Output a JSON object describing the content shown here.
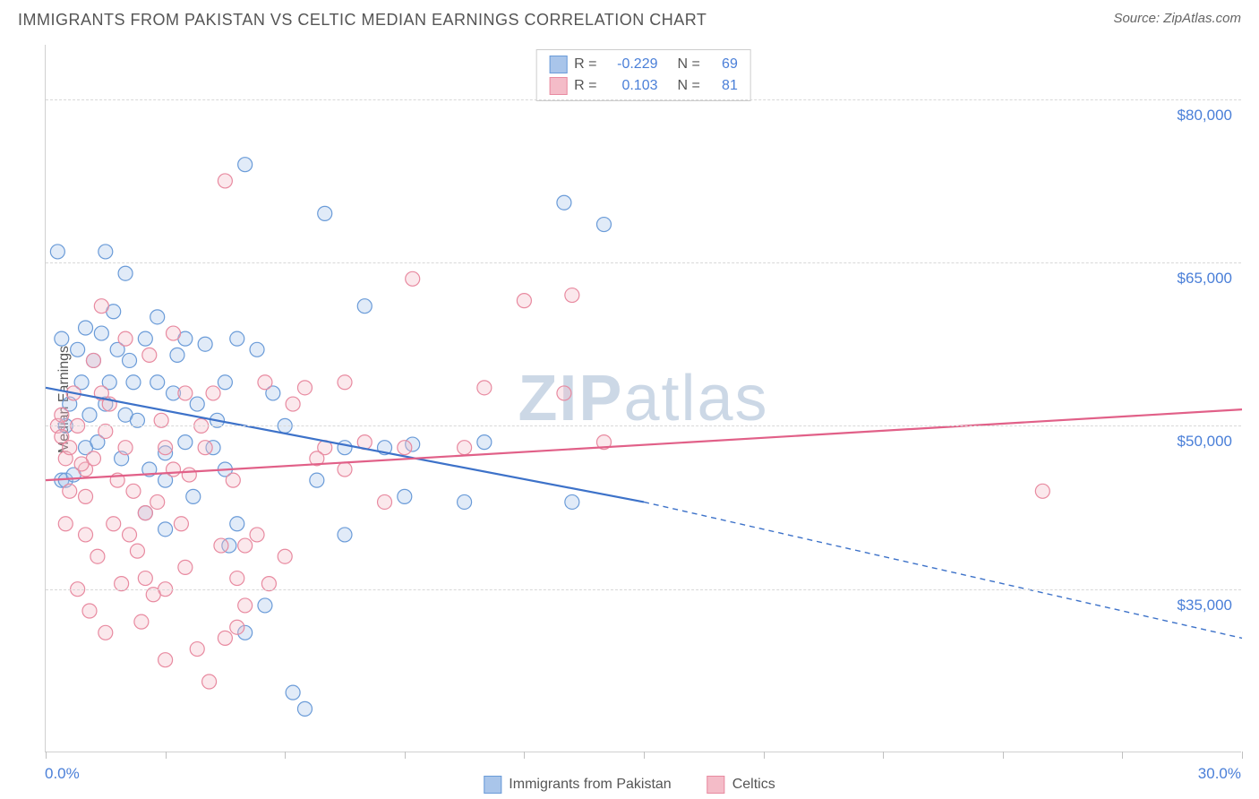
{
  "header": {
    "title": "IMMIGRANTS FROM PAKISTAN VS CELTIC MEDIAN EARNINGS CORRELATION CHART",
    "source": "Source: ZipAtlas.com"
  },
  "watermark": {
    "bold": "ZIP",
    "light": "atlas"
  },
  "chart": {
    "type": "scatter",
    "y_axis_title": "Median Earnings",
    "xlim": [
      0,
      30
    ],
    "ylim": [
      20000,
      85000
    ],
    "x_tick_positions": [
      0,
      3,
      6,
      9,
      12,
      15,
      18,
      21,
      24,
      27,
      30
    ],
    "x_start_label": "0.0%",
    "x_end_label": "30.0%",
    "y_gridlines": [
      35000,
      50000,
      65000,
      80000
    ],
    "y_tick_labels": [
      "$35,000",
      "$50,000",
      "$65,000",
      "$80,000"
    ],
    "grid_color": "#d8d8d8",
    "background_color": "#ffffff",
    "axis_label_color": "#4a7fd8",
    "marker_radius": 8,
    "series": [
      {
        "name": "Immigrants from Pakistan",
        "color_fill": "#a9c5ea",
        "color_stroke": "#6a9bd8",
        "R": "-0.229",
        "N": "69",
        "trend": {
          "solid": {
            "x1": 0,
            "y1": 53500,
            "x2": 15,
            "y2": 43000
          },
          "dashed": {
            "x1": 15,
            "y1": 43000,
            "x2": 30,
            "y2": 30500
          },
          "color": "#3d72c9",
          "width": 2.2
        },
        "points": [
          [
            0.3,
            66000
          ],
          [
            0.5,
            50000
          ],
          [
            0.4,
            45000
          ],
          [
            0.6,
            52000
          ],
          [
            0.8,
            57000
          ],
          [
            1.0,
            59000
          ],
          [
            1.2,
            56000
          ],
          [
            1.5,
            66000
          ],
          [
            1.4,
            58500
          ],
          [
            1.6,
            54000
          ],
          [
            1.8,
            57000
          ],
          [
            1.0,
            48000
          ],
          [
            0.5,
            45000
          ],
          [
            2.0,
            51000
          ],
          [
            2.2,
            54000
          ],
          [
            2.5,
            58000
          ],
          [
            3.0,
            47500
          ],
          [
            2.8,
            54000
          ],
          [
            3.2,
            53000
          ],
          [
            3.5,
            58000
          ],
          [
            4.0,
            57500
          ],
          [
            4.2,
            48000
          ],
          [
            4.5,
            54000
          ],
          [
            5.0,
            74000
          ],
          [
            4.8,
            58000
          ],
          [
            3.0,
            45000
          ],
          [
            4.5,
            46000
          ],
          [
            2.5,
            42000
          ],
          [
            5.3,
            57000
          ],
          [
            5.0,
            31000
          ],
          [
            5.5,
            33500
          ],
          [
            3.0,
            40500
          ],
          [
            4.8,
            41000
          ],
          [
            3.5,
            48500
          ],
          [
            6.2,
            25500
          ],
          [
            6.5,
            24000
          ],
          [
            7.0,
            69500
          ],
          [
            6.8,
            45000
          ],
          [
            7.5,
            40000
          ],
          [
            7.5,
            48000
          ],
          [
            8.0,
            61000
          ],
          [
            8.5,
            48000
          ],
          [
            9.0,
            43500
          ],
          [
            9.2,
            48300
          ],
          [
            10.5,
            43000
          ],
          [
            11.0,
            48500
          ],
          [
            13.0,
            70500
          ],
          [
            13.2,
            43000
          ],
          [
            14.0,
            68500
          ],
          [
            2.0,
            64000
          ],
          [
            1.5,
            52000
          ],
          [
            2.3,
            50500
          ],
          [
            0.9,
            54000
          ],
          [
            1.1,
            51000
          ],
          [
            1.9,
            47000
          ],
          [
            3.8,
            52000
          ],
          [
            2.1,
            56000
          ],
          [
            2.8,
            60000
          ],
          [
            0.7,
            45500
          ],
          [
            1.3,
            48500
          ],
          [
            5.7,
            53000
          ],
          [
            6.0,
            50000
          ],
          [
            3.7,
            43500
          ],
          [
            4.3,
            50500
          ],
          [
            1.7,
            60500
          ],
          [
            2.6,
            46000
          ],
          [
            3.3,
            56500
          ],
          [
            0.4,
            58000
          ],
          [
            4.6,
            39000
          ]
        ]
      },
      {
        "name": "Celtics",
        "color_fill": "#f4bcc8",
        "color_stroke": "#e88aa0",
        "R": "0.103",
        "N": "81",
        "trend": {
          "solid": {
            "x1": 0,
            "y1": 45000,
            "x2": 30,
            "y2": 51500
          },
          "dashed": null,
          "color": "#e16088",
          "width": 2.2
        },
        "points": [
          [
            0.3,
            50000
          ],
          [
            0.5,
            47000
          ],
          [
            0.4,
            49000
          ],
          [
            0.6,
            48000
          ],
          [
            0.8,
            50000
          ],
          [
            1.0,
            46000
          ],
          [
            1.2,
            47000
          ],
          [
            1.5,
            49500
          ],
          [
            1.4,
            53000
          ],
          [
            1.6,
            52000
          ],
          [
            1.8,
            45000
          ],
          [
            1.0,
            40000
          ],
          [
            0.5,
            41000
          ],
          [
            2.0,
            48000
          ],
          [
            2.2,
            44000
          ],
          [
            2.5,
            42000
          ],
          [
            3.0,
            48000
          ],
          [
            2.8,
            43000
          ],
          [
            3.2,
            46000
          ],
          [
            3.5,
            53000
          ],
          [
            4.0,
            48000
          ],
          [
            4.2,
            53000
          ],
          [
            4.5,
            72500
          ],
          [
            5.0,
            33500
          ],
          [
            4.8,
            31500
          ],
          [
            3.0,
            35000
          ],
          [
            4.5,
            30500
          ],
          [
            2.5,
            36000
          ],
          [
            5.3,
            40000
          ],
          [
            5.0,
            39000
          ],
          [
            5.5,
            54000
          ],
          [
            3.0,
            28500
          ],
          [
            4.8,
            36000
          ],
          [
            3.5,
            37000
          ],
          [
            6.2,
            52000
          ],
          [
            6.5,
            53500
          ],
          [
            7.0,
            48000
          ],
          [
            6.8,
            47000
          ],
          [
            7.5,
            54000
          ],
          [
            7.5,
            46000
          ],
          [
            8.0,
            48500
          ],
          [
            8.5,
            43000
          ],
          [
            9.0,
            48000
          ],
          [
            9.2,
            63500
          ],
          [
            10.5,
            48000
          ],
          [
            11.0,
            53500
          ],
          [
            12.0,
            61500
          ],
          [
            13.0,
            53000
          ],
          [
            13.2,
            62000
          ],
          [
            14.0,
            48500
          ],
          [
            25.0,
            44000
          ],
          [
            1.0,
            43500
          ],
          [
            0.6,
            44000
          ],
          [
            0.9,
            46500
          ],
          [
            1.3,
            38000
          ],
          [
            1.7,
            41000
          ],
          [
            2.1,
            40000
          ],
          [
            2.4,
            32000
          ],
          [
            2.7,
            34500
          ],
          [
            3.4,
            41000
          ],
          [
            0.8,
            35000
          ],
          [
            1.1,
            33000
          ],
          [
            1.5,
            31000
          ],
          [
            1.9,
            35500
          ],
          [
            2.3,
            38500
          ],
          [
            0.4,
            51000
          ],
          [
            0.7,
            53000
          ],
          [
            1.2,
            56000
          ],
          [
            1.4,
            61000
          ],
          [
            2.0,
            58000
          ],
          [
            2.6,
            56500
          ],
          [
            3.2,
            58500
          ],
          [
            3.8,
            29500
          ],
          [
            4.1,
            26500
          ],
          [
            5.6,
            35500
          ],
          [
            6.0,
            38000
          ],
          [
            4.4,
            39000
          ],
          [
            3.6,
            45500
          ],
          [
            2.9,
            50500
          ],
          [
            3.9,
            50000
          ],
          [
            4.7,
            45000
          ]
        ]
      }
    ]
  },
  "legend_top": {
    "rows": [
      {
        "swatch_fill": "#a9c5ea",
        "swatch_stroke": "#6a9bd8",
        "r_label": "R =",
        "r_val": "-0.229",
        "n_label": "N =",
        "n_val": "69"
      },
      {
        "swatch_fill": "#f4bcc8",
        "swatch_stroke": "#e88aa0",
        "r_label": "R =",
        "r_val": "0.103",
        "n_label": "N =",
        "n_val": "81"
      }
    ]
  },
  "legend_bottom": {
    "items": [
      {
        "swatch_fill": "#a9c5ea",
        "swatch_stroke": "#6a9bd8",
        "label": "Immigrants from Pakistan"
      },
      {
        "swatch_fill": "#f4bcc8",
        "swatch_stroke": "#e88aa0",
        "label": "Celtics"
      }
    ]
  }
}
